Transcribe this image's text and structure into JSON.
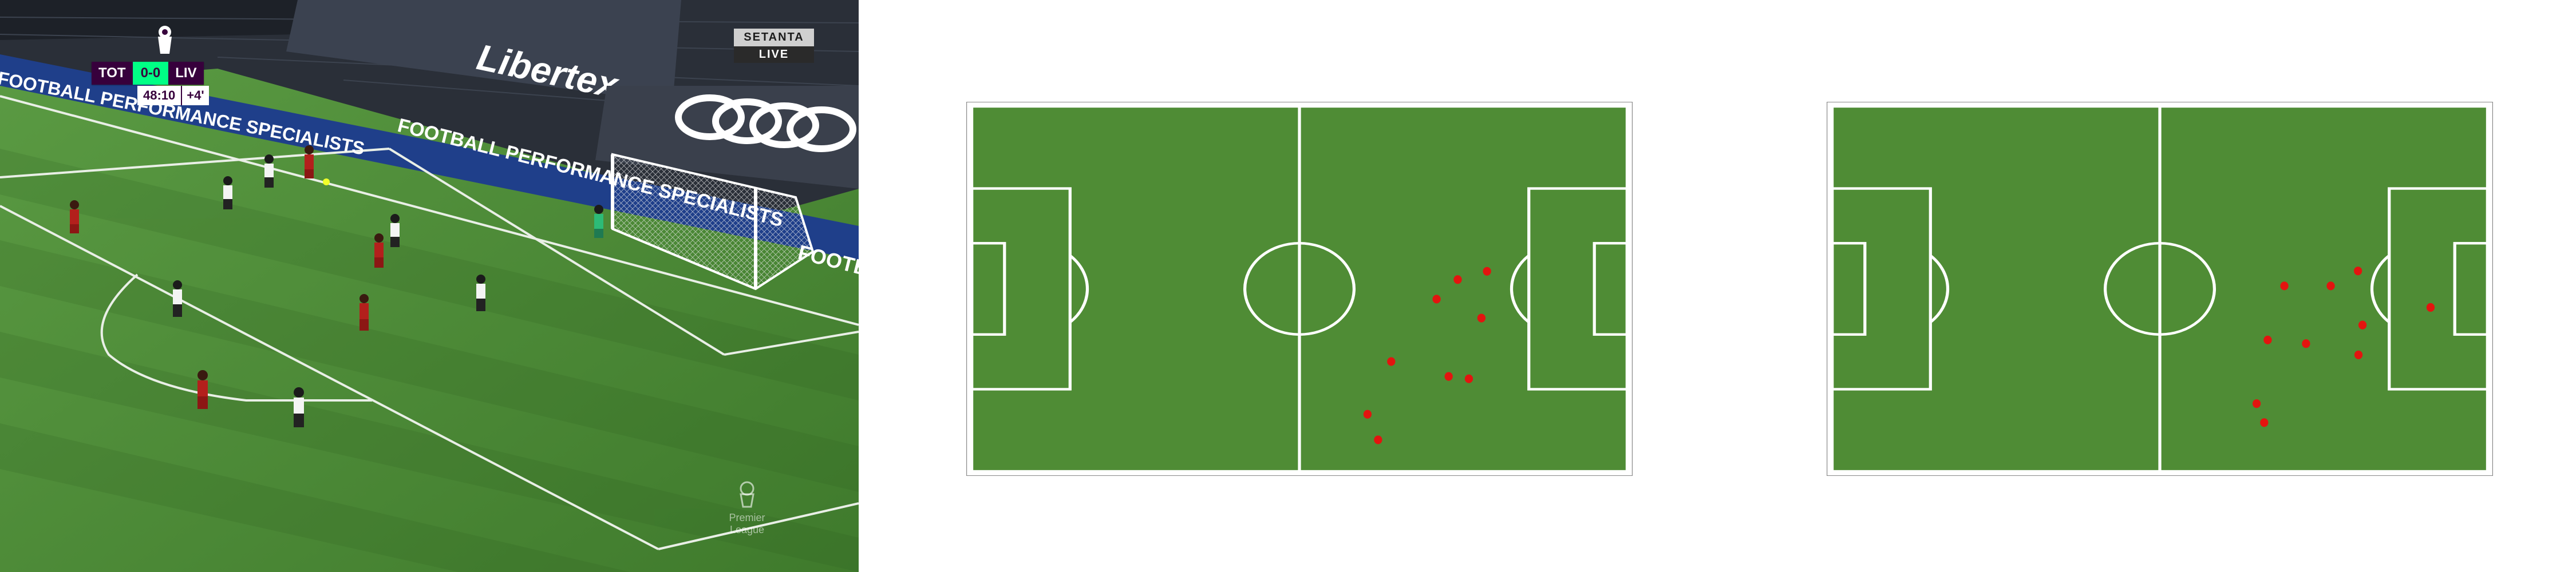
{
  "broadcast": {
    "scoreboard": {
      "home_team": "TOT",
      "score": "0-0",
      "away_team": "LIV",
      "clock": "48:10",
      "added_time": "+4'"
    },
    "broadcaster": {
      "name_top": "SETANTA",
      "name_bottom": "LIVE"
    },
    "sponsor_board": "Libertex",
    "stand_banner_text": "FOOTBALL PERFORMANCE SPECIALISTS",
    "side_banner_text": "FOOTB",
    "watermark_text": "Premier League",
    "colors": {
      "scorebug_purple": "#37003c",
      "scorebug_green": "#00ff85",
      "pitch_light": "#5a9a41",
      "pitch_dark": "#4b8635"
    }
  },
  "pitch_maps": [
    {
      "name": "pitch-map-left",
      "player_positions": [
        {
          "x": 102.2,
          "y": 49.7
        },
        {
          "x": 96.4,
          "y": 52.2
        },
        {
          "x": 92.2,
          "y": 58.1
        },
        {
          "x": 101.1,
          "y": 63.8
        },
        {
          "x": 98.6,
          "y": 82.1
        },
        {
          "x": 83.2,
          "y": 76.9
        },
        {
          "x": 94.6,
          "y": 81.4
        },
        {
          "x": 78.5,
          "y": 92.8
        },
        {
          "x": 80.6,
          "y": 100.5
        }
      ]
    },
    {
      "name": "pitch-map-right",
      "player_positions": [
        {
          "x": 104.3,
          "y": 49.6
        },
        {
          "x": 98.9,
          "y": 54.1
        },
        {
          "x": 89.7,
          "y": 54.1
        },
        {
          "x": 105.2,
          "y": 65.9
        },
        {
          "x": 118.7,
          "y": 60.6
        },
        {
          "x": 86.4,
          "y": 70.4
        },
        {
          "x": 94.0,
          "y": 71.5
        },
        {
          "x": 104.4,
          "y": 74.9
        },
        {
          "x": 84.2,
          "y": 89.6
        },
        {
          "x": 85.7,
          "y": 95.3
        }
      ]
    }
  ],
  "pitch_colors": {
    "grass": "#4f8c35",
    "lines": "#ffffff",
    "players": "#e3140f"
  }
}
